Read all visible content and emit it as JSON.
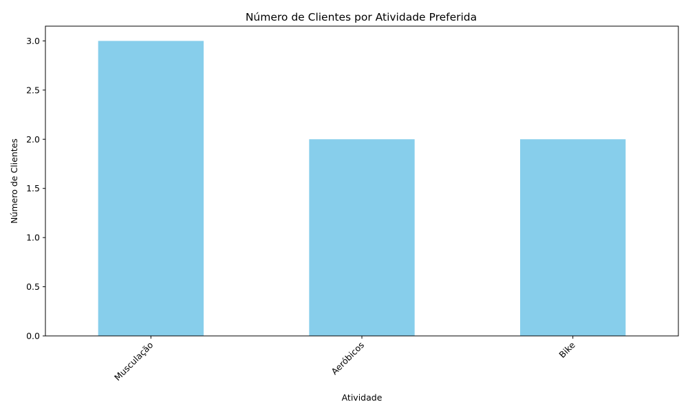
{
  "chart_data": {
    "type": "bar",
    "title": "Número de Clientes por Atividade Preferida",
    "xlabel": "Atividade",
    "ylabel": "Número de Clientes",
    "categories": [
      "Musculação",
      "Aeróbicos",
      "Bike"
    ],
    "values": [
      3,
      2,
      2
    ],
    "ylim": [
      0,
      3.15
    ],
    "yticks": [
      0.0,
      0.5,
      1.0,
      1.5,
      2.0,
      2.5,
      3.0
    ],
    "ytick_labels": [
      "0.0",
      "0.5",
      "1.0",
      "1.5",
      "2.0",
      "2.5",
      "3.0"
    ],
    "bar_color": "#87ceeb",
    "grid": false,
    "xtick_rotation": 45
  }
}
